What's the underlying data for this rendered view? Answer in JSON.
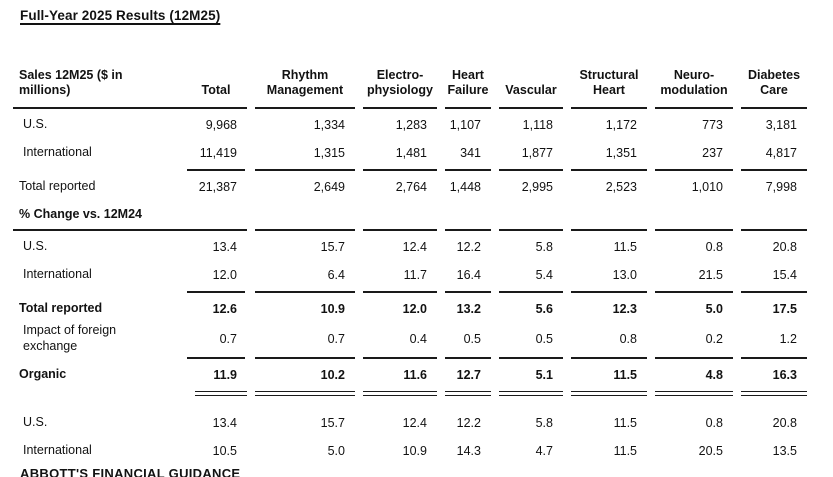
{
  "page": {
    "title": "Full-Year 2025 Results (12M25)"
  },
  "colors": {
    "text": "#121212",
    "rule": "#1a1a1a",
    "background": "#ffffff"
  },
  "table": {
    "header": {
      "label": "Sales 12M25 ($ in millions)",
      "columns": [
        "Total",
        "Rhythm\nManagement",
        "Electro-\nphysiology",
        "Heart\nFailure",
        "Vascular",
        "Structural\nHeart",
        "Neuro-\nmodulation",
        "Diabetes\nCare"
      ]
    },
    "rows": [
      {
        "type": "rule",
        "variant": "full"
      },
      {
        "type": "data",
        "label": "U.S.",
        "indent": true,
        "values": [
          "9,968",
          "1,334",
          "1,283",
          "1,107",
          "1,118",
          "1,172",
          "773",
          "3,181"
        ]
      },
      {
        "type": "data",
        "label": "International",
        "indent": true,
        "values": [
          "11,419",
          "1,315",
          "1,481",
          "341",
          "1,877",
          "1,351",
          "237",
          "4,817"
        ]
      },
      {
        "type": "rule",
        "variant": "sub"
      },
      {
        "type": "data",
        "label": "Total reported",
        "values": [
          "21,387",
          "2,649",
          "2,764",
          "1,448",
          "2,995",
          "2,523",
          "1,010",
          "7,998"
        ]
      },
      {
        "type": "section",
        "label": "% Change vs. 12M24"
      },
      {
        "type": "rule",
        "variant": "full"
      },
      {
        "type": "data",
        "label": "U.S.",
        "indent": true,
        "values": [
          "13.4",
          "15.7",
          "12.4",
          "12.2",
          "5.8",
          "11.5",
          "0.8",
          "20.8"
        ]
      },
      {
        "type": "data",
        "label": "International",
        "indent": true,
        "values": [
          "12.0",
          "6.4",
          "11.7",
          "16.4",
          "5.4",
          "13.0",
          "21.5",
          "15.4"
        ]
      },
      {
        "type": "rule",
        "variant": "sub"
      },
      {
        "type": "data",
        "label": "Total reported",
        "bold": true,
        "values": [
          "12.6",
          "10.9",
          "12.0",
          "13.2",
          "5.6",
          "12.3",
          "5.0",
          "17.5"
        ]
      },
      {
        "type": "data",
        "label": "Impact of foreign\nexchange",
        "indent": true,
        "multiline": true,
        "values": [
          "0.7",
          "0.7",
          "0.4",
          "0.5",
          "0.5",
          "0.8",
          "0.2",
          "1.2"
        ]
      },
      {
        "type": "rule",
        "variant": "sub"
      },
      {
        "type": "data",
        "label": "Organic",
        "bold": true,
        "values": [
          "11.9",
          "10.2",
          "11.6",
          "12.7",
          "5.1",
          "11.5",
          "4.8",
          "16.3"
        ]
      },
      {
        "type": "rule",
        "variant": "double"
      },
      {
        "type": "spacer"
      },
      {
        "type": "data",
        "label": "U.S.",
        "indent": true,
        "values": [
          "13.4",
          "15.7",
          "12.4",
          "12.2",
          "5.8",
          "11.5",
          "0.8",
          "20.8"
        ]
      },
      {
        "type": "data",
        "label": "International",
        "indent": true,
        "values": [
          "10.5",
          "5.0",
          "10.9",
          "14.3",
          "4.7",
          "11.5",
          "20.5",
          "13.5"
        ]
      }
    ]
  },
  "footer": {
    "heading": "ABBOTT'S FINANCIAL GUIDANCE"
  }
}
